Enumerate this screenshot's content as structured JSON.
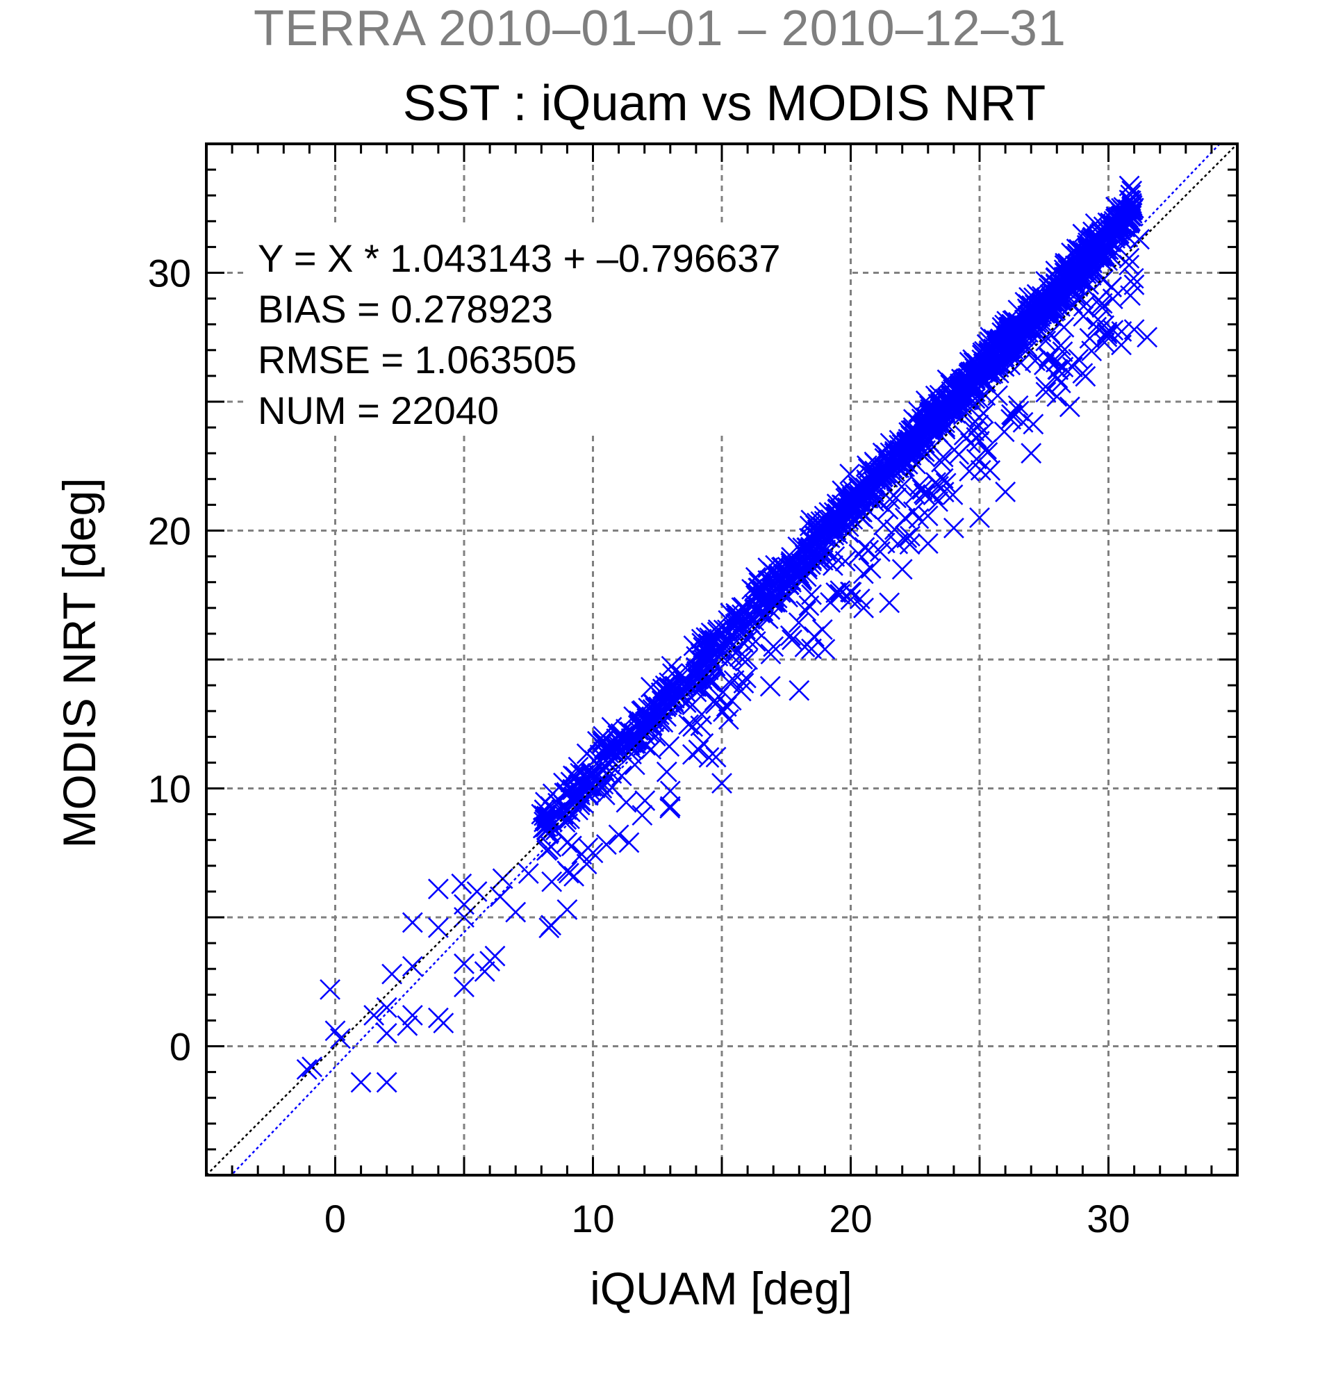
{
  "page": {
    "header": "TERRA  2010–01–01 – 2010–12–31",
    "title": "SST : iQuam vs MODIS NRT"
  },
  "stats": {
    "line1": "Y = X * 1.043143 + –0.796637",
    "line2": "BIAS = 0.278923",
    "line3": "RMSE = 1.063505",
    "line4": "NUM = 22040"
  },
  "colors": {
    "points": "#0000ff",
    "fit_line": "#0000ff",
    "identity_line": "#000000",
    "grid": "#808080",
    "header": "#7f7f7f"
  },
  "chart_data": {
    "type": "scatter",
    "xlabel": "iQUAM [deg]",
    "ylabel": "MODIS NRT [deg]",
    "xlim": [
      -5,
      35
    ],
    "ylim": [
      -5,
      35
    ],
    "xticks": [
      0,
      10,
      20,
      30
    ],
    "yticks": [
      0,
      10,
      20,
      30
    ],
    "grid": true,
    "grid_step": 5,
    "marker": "x",
    "fit": {
      "slope": 1.043143,
      "intercept": -0.796637
    },
    "identity_line": true,
    "num_points": 22040,
    "sample_points": [
      [
        -0.2,
        2.2
      ],
      [
        0.0,
        0.6
      ],
      [
        0.2,
        0.3
      ],
      [
        -0.9,
        -0.8
      ],
      [
        -1.1,
        -0.9
      ],
      [
        1.0,
        -1.4
      ],
      [
        2.0,
        -1.4
      ],
      [
        1.5,
        1.2
      ],
      [
        2.0,
        1.5
      ],
      [
        2.2,
        2.8
      ],
      [
        2.0,
        0.5
      ],
      [
        2.8,
        0.8
      ],
      [
        3.0,
        1.2
      ],
      [
        3.0,
        3.1
      ],
      [
        3.0,
        4.8
      ],
      [
        4.0,
        6.1
      ],
      [
        4.0,
        4.6
      ],
      [
        4.0,
        1.1
      ],
      [
        4.2,
        0.9
      ],
      [
        4.9,
        6.3
      ],
      [
        5.0,
        5.5
      ],
      [
        5.0,
        5.0
      ],
      [
        5.0,
        3.2
      ],
      [
        5.0,
        2.3
      ],
      [
        5.5,
        6.0
      ],
      [
        5.8,
        2.9
      ],
      [
        6.0,
        3.3
      ],
      [
        6.2,
        3.5
      ],
      [
        6.4,
        5.8
      ],
      [
        6.5,
        6.5
      ],
      [
        7.0,
        5.2
      ],
      [
        7.5,
        6.7
      ],
      [
        8.0,
        9.0
      ],
      [
        8.2,
        8.4
      ],
      [
        9.0,
        5.3
      ],
      [
        9.0,
        6.8
      ],
      [
        9.0,
        7.9
      ],
      [
        10.0,
        7.5
      ],
      [
        11.0,
        8.2
      ],
      [
        11.4,
        7.9
      ],
      [
        13.0,
        9.3
      ],
      [
        13.0,
        9.9
      ],
      [
        14.5,
        11.2
      ],
      [
        15.0,
        10.2
      ],
      [
        16.0,
        15.0
      ],
      [
        17.0,
        15.5
      ],
      [
        18.0,
        13.8
      ],
      [
        19.0,
        15.4
      ],
      [
        20.5,
        17.0
      ],
      [
        21.5,
        17.2
      ],
      [
        22.0,
        18.5
      ],
      [
        23.0,
        19.5
      ],
      [
        24.0,
        20.1
      ],
      [
        25.0,
        20.5
      ],
      [
        26.0,
        21.5
      ],
      [
        27.0,
        23.0
      ],
      [
        28.0,
        25.2
      ],
      [
        28.5,
        24.8
      ],
      [
        29.0,
        26.1
      ],
      [
        30.5,
        27.2
      ],
      [
        31.0,
        27.8
      ],
      [
        31.5,
        27.5
      ],
      [
        20.0,
        21.0
      ],
      [
        25.0,
        26.0
      ],
      [
        29.0,
        31.5
      ],
      [
        30.5,
        32.5
      ],
      [
        30.8,
        30.3
      ],
      [
        31.2,
        31.3
      ]
    ]
  }
}
